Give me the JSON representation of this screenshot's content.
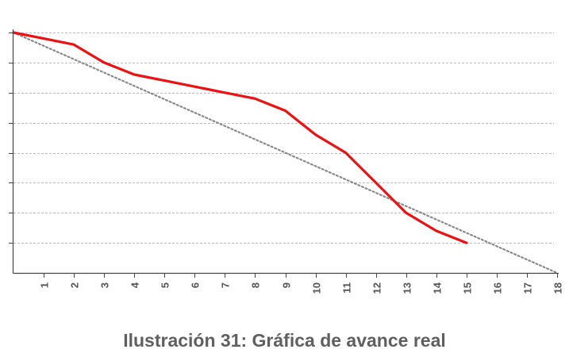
{
  "caption": "Ilustración 31: Gráfica de avance real",
  "colors": {
    "actual_line": "#ee1111",
    "ideal_line": "#8a8a8a",
    "grid": "#bbbbbb",
    "axis": "#444444",
    "tick_text": "#555555",
    "caption_text": "#5f5f5f"
  },
  "chart_data": {
    "type": "line",
    "x_tick_labels": [
      "1",
      "2",
      "3",
      "4",
      "5",
      "6",
      "7",
      "8",
      "9",
      "10",
      "11",
      "12",
      "13",
      "14",
      "15",
      "16",
      "17",
      "18"
    ],
    "xlim": [
      0,
      18
    ],
    "ylim": [
      0,
      8
    ],
    "y_tick_labels_shown": false,
    "grid": {
      "horizontal": true,
      "style": "dashed",
      "levels": [
        1,
        2,
        3,
        4,
        5,
        6,
        7,
        8
      ]
    },
    "legend": "none",
    "series": [
      {
        "style": "dotted",
        "color": "#8a8a8a",
        "x": [
          0,
          18
        ],
        "y": [
          8,
          0
        ]
      },
      {
        "style": "solid",
        "color": "#ee1111",
        "x": [
          0,
          1,
          2,
          3,
          4,
          5,
          6,
          7,
          8,
          9,
          10,
          11,
          12,
          13,
          14,
          15
        ],
        "y": [
          8,
          7.8,
          7.6,
          7.0,
          6.6,
          6.4,
          6.2,
          6.0,
          5.8,
          5.4,
          4.6,
          4.0,
          3.0,
          2.0,
          1.4,
          1.0
        ]
      }
    ]
  }
}
